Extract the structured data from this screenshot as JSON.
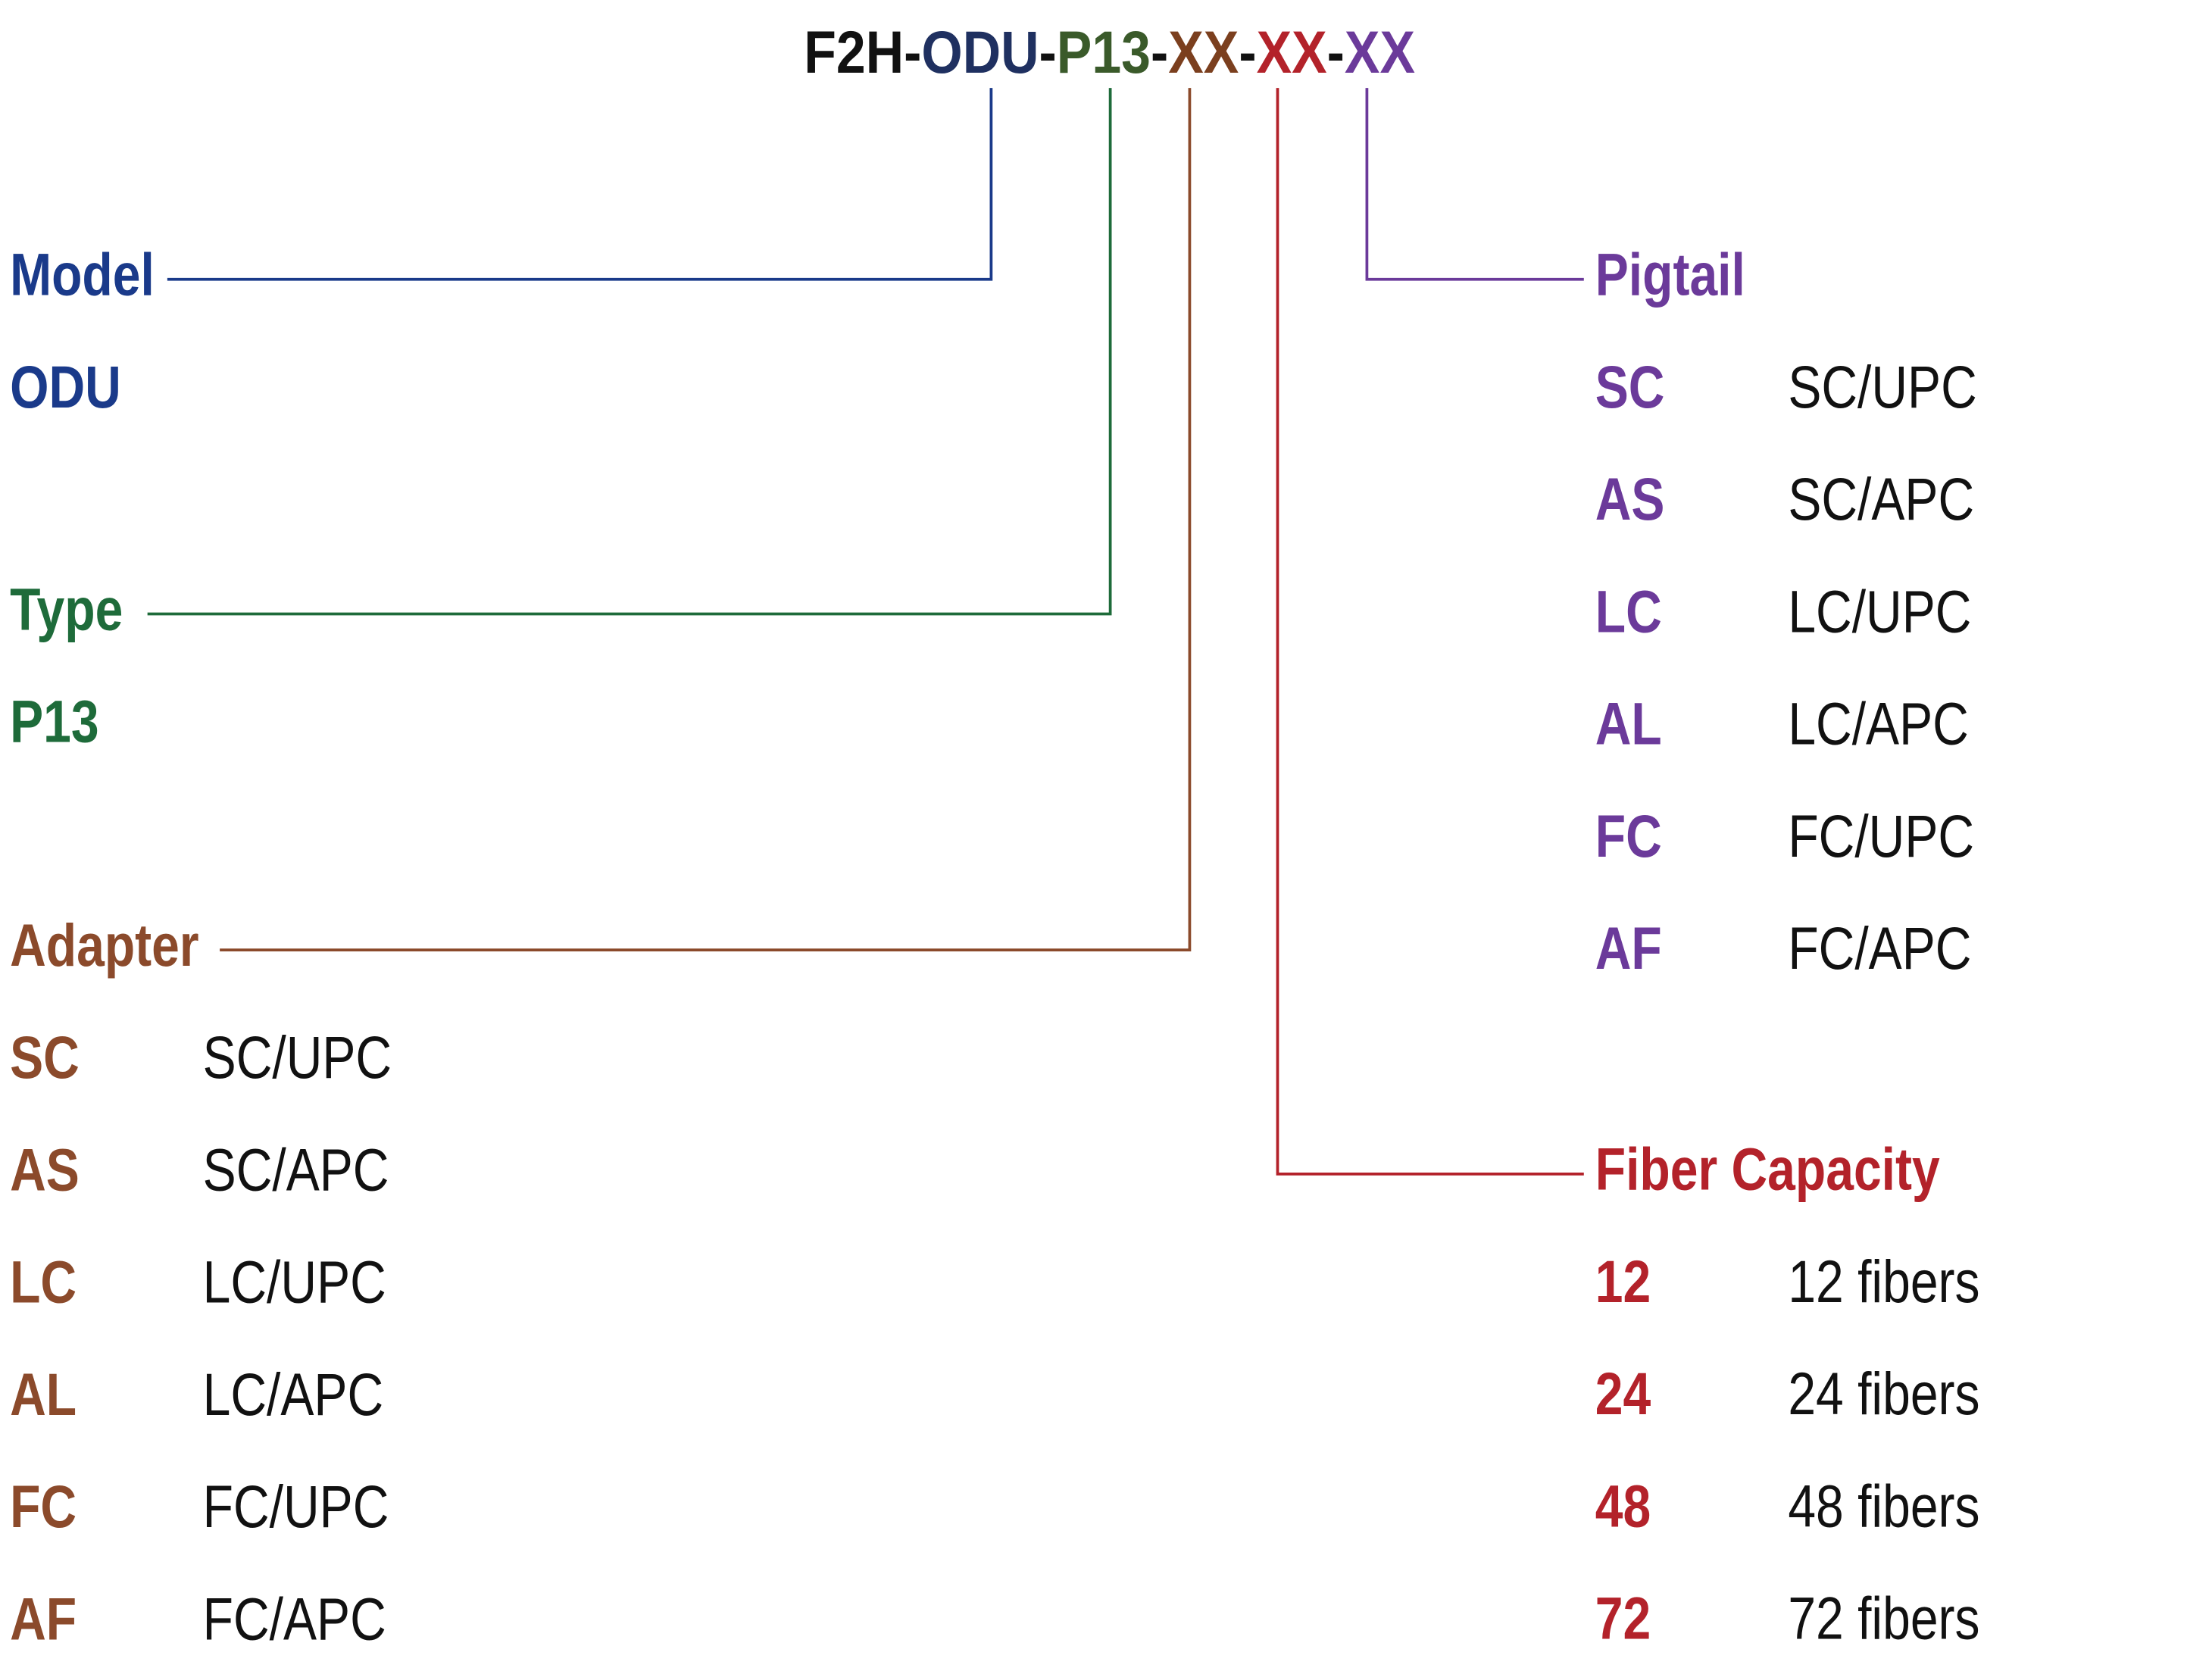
{
  "code": {
    "parts": [
      "F2H",
      "-",
      "ODU",
      "-",
      "P13",
      "-",
      "XX",
      "-",
      "XX",
      "-",
      "XX"
    ]
  },
  "sections": [
    {
      "title": "Model",
      "options": [
        {
          "code": "ODU"
        }
      ]
    },
    {
      "title": "Type",
      "options": [
        {
          "code": "P13"
        }
      ]
    },
    {
      "title": "Adapter",
      "options": [
        {
          "code": "SC",
          "description": "SC/UPC"
        },
        {
          "code": "AS",
          "description": "SC/APC"
        },
        {
          "code": "LC",
          "description": "LC/UPC"
        },
        {
          "code": "AL",
          "description": "LC/APC"
        },
        {
          "code": "FC",
          "description": "FC/UPC"
        },
        {
          "code": "AF",
          "description": "FC/APC"
        }
      ]
    },
    {
      "title": "Pigtail",
      "options": [
        {
          "code": "SC",
          "description": "SC/UPC"
        },
        {
          "code": "AS",
          "description": "SC/APC"
        },
        {
          "code": "LC",
          "description": "LC/UPC"
        },
        {
          "code": "AL",
          "description": "LC/APC"
        },
        {
          "code": "FC",
          "description": "FC/UPC"
        },
        {
          "code": "AF",
          "description": "FC/APC"
        }
      ]
    },
    {
      "title": "Fiber Capacity",
      "options": [
        {
          "code": "12",
          "description": "12 fibers"
        },
        {
          "code": "24",
          "description": "24 fibers"
        },
        {
          "code": "48",
          "description": "48 fibers"
        },
        {
          "code": "72",
          "description": "72 fibers"
        }
      ]
    }
  ]
}
